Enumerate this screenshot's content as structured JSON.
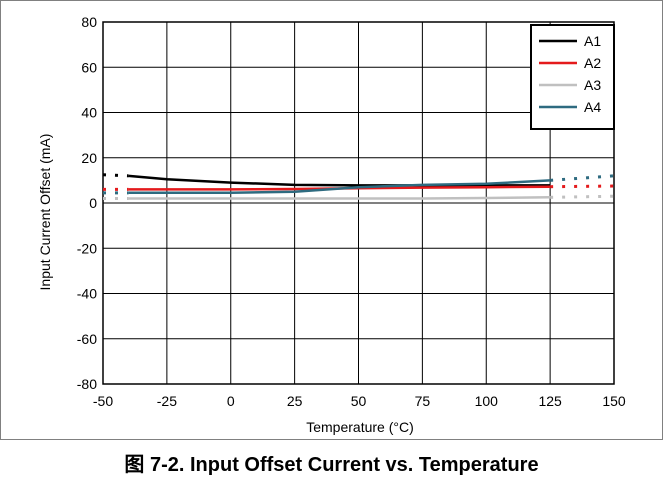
{
  "caption": "图 7-2. Input Offset Current vs. Temperature",
  "colors": {
    "frame": "#808080",
    "grid": "#000000",
    "A1": "#000000",
    "A2": "#e41a1c",
    "A3": "#c0c0c0",
    "A4": "#2e6b80"
  },
  "chart_data": {
    "type": "line",
    "title": "",
    "xlabel": "Temperature (°C)",
    "ylabel": "Input Current Offset (mA)",
    "xlim": [
      -50,
      150
    ],
    "ylim": [
      -80,
      80
    ],
    "xticks": [
      -50,
      -25,
      0,
      25,
      50,
      75,
      100,
      125,
      150
    ],
    "yticks": [
      -80,
      -60,
      -40,
      -20,
      0,
      20,
      40,
      60,
      80
    ],
    "xtick_labels": [
      "-50",
      "-25",
      "0",
      "25",
      "50",
      "75",
      "100",
      "125",
      "150"
    ],
    "ytick_labels": [
      "-80",
      "-60",
      "-40",
      "-20",
      "0",
      "20",
      "40",
      "60",
      "80"
    ],
    "grid": true,
    "legend_position": "top-right",
    "series": [
      {
        "name": "A1",
        "color": "#000000",
        "x": [
          -40,
          -25,
          0,
          25,
          50,
          75,
          100,
          125
        ],
        "y": [
          12,
          10.5,
          9,
          8,
          7.8,
          7.8,
          7.8,
          7.8
        ],
        "dotted_extension": [
          [
            -50,
            12.5
          ],
          [
            -40,
            12
          ]
        ]
      },
      {
        "name": "A2",
        "color": "#e41a1c",
        "x": [
          -40,
          -25,
          0,
          25,
          50,
          75,
          100,
          125
        ],
        "y": [
          6,
          6,
          6,
          6.2,
          6.5,
          6.8,
          7,
          7.2
        ],
        "dotted_extension": [
          [
            -50,
            6
          ],
          [
            -40,
            6
          ],
          [
            125,
            7.2
          ],
          [
            150,
            7.5
          ]
        ]
      },
      {
        "name": "A3",
        "color": "#c0c0c0",
        "x": [
          -40,
          -25,
          0,
          25,
          50,
          75,
          100,
          125
        ],
        "y": [
          2,
          2,
          2,
          2,
          2,
          2,
          2.2,
          2.5
        ],
        "dotted_extension": [
          [
            -50,
            2
          ],
          [
            -40,
            2
          ],
          [
            125,
            2.5
          ],
          [
            150,
            3
          ]
        ]
      },
      {
        "name": "A4",
        "color": "#2e6b80",
        "x": [
          -40,
          -25,
          0,
          25,
          50,
          75,
          100,
          125
        ],
        "y": [
          4.5,
          4.5,
          4.5,
          5,
          7,
          8,
          8.5,
          10
        ],
        "dotted_extension": [
          [
            -50,
            4.5
          ],
          [
            -40,
            4.5
          ],
          [
            125,
            10
          ],
          [
            150,
            12
          ]
        ]
      }
    ]
  }
}
